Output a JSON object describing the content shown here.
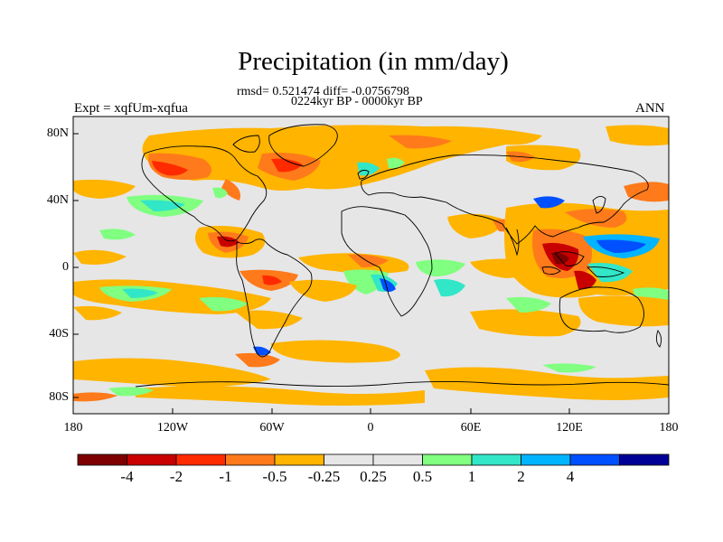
{
  "title": "Precipitation (in mm/day)",
  "stats": "rmsd= 0.521474 diff= -0.0756798",
  "period": "0224kyr BP - 0000kyr BP",
  "experiment": "Expt = xqfUm-xqfua",
  "season": "ANN",
  "lat_ticks": [
    "80N",
    "40N",
    "0",
    "40S",
    "80S"
  ],
  "lon_ticks": [
    "180",
    "120W",
    "60W",
    "0",
    "60E",
    "120E",
    "180"
  ],
  "colorbar": {
    "colors": [
      "#7f0000",
      "#c80000",
      "#ff2a00",
      "#ff7a1a",
      "#ffb400",
      "#e6e6e6",
      "#e6e6e6",
      "#80ff80",
      "#32e6c8",
      "#00b4ff",
      "#0050ff",
      "#000096"
    ],
    "labels": [
      "-4",
      "-2",
      "-1",
      "-0.5",
      "-0.25",
      "0.25",
      "0.5",
      "1",
      "2",
      "4"
    ]
  },
  "colors": {
    "background": "#e6e6e6",
    "frame": "#000000"
  }
}
